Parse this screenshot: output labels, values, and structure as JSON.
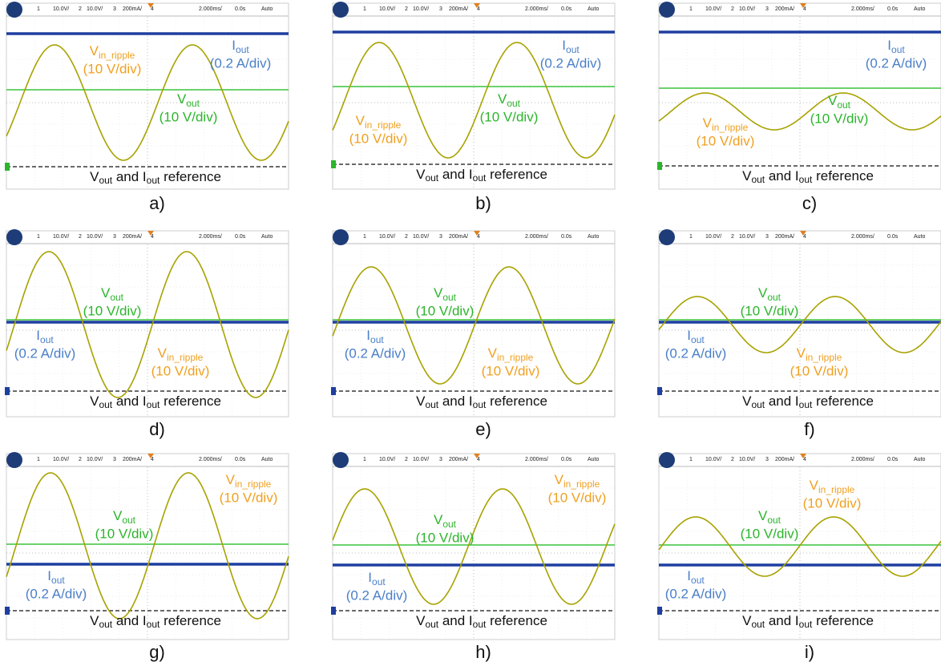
{
  "panels": [
    {
      "label": "a)",
      "header": [
        "1",
        "10.0V/",
        "2",
        "10.0V/",
        "3",
        "200mA/",
        "4",
        "2.000ms/",
        "0.0s",
        "Auto"
      ],
      "iout": [
        "I",
        "out",
        "(0.2 A/div)"
      ],
      "vin": [
        "V",
        "in_ripple",
        "(10 V/div)"
      ],
      "vout": [
        "V",
        "out",
        "(10 V/div)"
      ],
      "reference": [
        "V",
        "out",
        " and I",
        "out",
        " reference"
      ]
    },
    {
      "label": "b)",
      "header": [
        "1",
        "10.0V/",
        "2",
        "10.0V/",
        "3",
        "200mA/",
        "4",
        "2.000ms/",
        "0.0s",
        "Auto"
      ],
      "iout": [
        "I",
        "out",
        "(0.2 A/div)"
      ],
      "vin": [
        "V",
        "in_ripple",
        "(10 V/div)"
      ],
      "vout": [
        "V",
        "out",
        "(10 V/div)"
      ],
      "reference": [
        "V",
        "out",
        " and I",
        "out",
        " reference"
      ]
    },
    {
      "label": "c)",
      "header": [
        "1",
        "10.0V/",
        "2",
        "10.0V/",
        "3",
        "200mA/",
        "4",
        "2.000ms/",
        "0.0s",
        "Auto"
      ],
      "iout": [
        "I",
        "out",
        "(0.2 A/div)"
      ],
      "vin": [
        "V",
        "in_ripple",
        "(10 V/div)"
      ],
      "vout": [
        "V",
        "out",
        "(10 V/div)"
      ],
      "reference": [
        "V",
        "out",
        " and I",
        "out",
        " reference"
      ]
    },
    {
      "label": "d)",
      "header": [
        "1",
        "10.0V/",
        "2",
        "10.0V/",
        "3",
        "200mA/",
        "4",
        "2.000ms/",
        "0.0s",
        "Auto"
      ],
      "iout": [
        "I",
        "out",
        "(0.2 A/div)"
      ],
      "vin": [
        "V",
        "in_ripple",
        "(10 V/div)"
      ],
      "vout": [
        "V",
        "out",
        "(10 V/div)"
      ],
      "reference": [
        "V",
        "out",
        " and I",
        "out",
        " reference"
      ]
    },
    {
      "label": "e)",
      "header": [
        "1",
        "10.0V/",
        "2",
        "10.0V/",
        "3",
        "200mA/",
        "4",
        "2.000ms/",
        "0.0s",
        "Auto"
      ],
      "iout": [
        "I",
        "out",
        "(0.2 A/div)"
      ],
      "vin": [
        "V",
        "in_ripple",
        "(10 V/div)"
      ],
      "vout": [
        "V",
        "out",
        "(10 V/div)"
      ],
      "reference": [
        "V",
        "out",
        " and I",
        "out",
        " reference"
      ]
    },
    {
      "label": "f)",
      "header": [
        "1",
        "10.0V/",
        "2",
        "10.0V/",
        "3",
        "200mA/",
        "4",
        "2.000ms/",
        "0.0s",
        "Auto"
      ],
      "iout": [
        "I",
        "out",
        "(0.2 A/div)"
      ],
      "vin": [
        "V",
        "in_ripple",
        "(10 V/div)"
      ],
      "vout": [
        "V",
        "out",
        "(10 V/div)"
      ],
      "reference": [
        "V",
        "out",
        " and I",
        "out",
        " reference"
      ]
    },
    {
      "label": "g)",
      "header": [
        "1",
        "10.0V/",
        "2",
        "10.0V/",
        "3",
        "200mA/",
        "4",
        "2.000ms/",
        "0.0s",
        "Auto"
      ],
      "iout": [
        "I",
        "out",
        "(0.2 A/div)"
      ],
      "vin": [
        "V",
        "in_ripple",
        "(10 V/div)"
      ],
      "vout": [
        "V",
        "out",
        "(10 V/div)"
      ],
      "reference": [
        "V",
        "out",
        " and I",
        "out",
        " reference"
      ]
    },
    {
      "label": "h)",
      "header": [
        "1",
        "10.0V/",
        "2",
        "10.0V/",
        "3",
        "200mA/",
        "4",
        "2.000ms/",
        "0.0s",
        "Auto"
      ],
      "iout": [
        "I",
        "out",
        "(0.2 A/div)"
      ],
      "vin": [
        "V",
        "in_ripple",
        "(10 V/div)"
      ],
      "vout": [
        "V",
        "out",
        "(10 V/div)"
      ],
      "reference": [
        "V",
        "out",
        " and I",
        "out",
        " reference"
      ]
    },
    {
      "label": "i)",
      "header": [
        "1",
        "10.0V/",
        "2",
        "10.0V/",
        "3",
        "200mA/",
        "4",
        "2.000ms/",
        "0.0s",
        "Auto"
      ],
      "iout": [
        "I",
        "out",
        "(0.2 A/div)"
      ],
      "vin": [
        "V",
        "in_ripple",
        "(10 V/div)"
      ],
      "vout": [
        "V",
        "out",
        "(10 V/div)"
      ],
      "reference": [
        "V",
        "out",
        " and I",
        "out",
        " reference"
      ]
    }
  ]
}
